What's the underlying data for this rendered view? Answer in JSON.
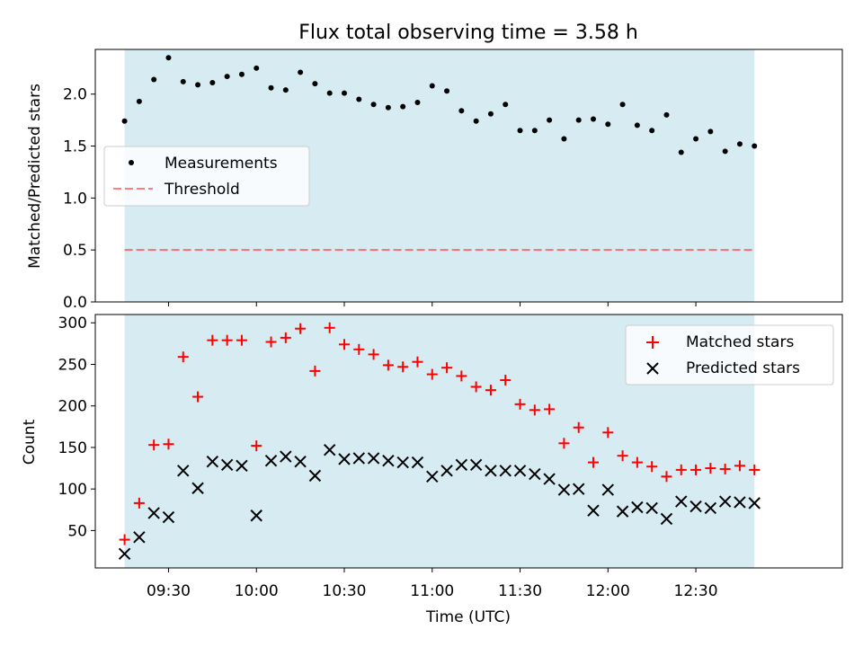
{
  "title": "Flux total observing time = 3.58 h",
  "colors": {
    "span": "#add8e6",
    "measurement": "#000000",
    "threshold": "#ff0000",
    "matched": "#ff0000",
    "predicted": "#000000"
  },
  "chart_data": [
    {
      "type": "scatter",
      "panel": "top",
      "ylabel": "Matched/Predicted stars",
      "xlabel": "",
      "ylim": [
        0,
        2.43
      ],
      "xlim": [
        "09:05",
        "13:20"
      ],
      "yticks": [
        "0.0",
        "0.5",
        "1.0",
        "1.5",
        "2.0"
      ],
      "ytick_values": [
        0,
        0.5,
        1.0,
        1.5,
        2.0
      ],
      "legend_position": "center-left",
      "shaded_span": [
        "09:15",
        "12:50"
      ],
      "threshold": 0.5,
      "x": [
        "09:15",
        "09:20",
        "09:25",
        "09:30",
        "09:35",
        "09:40",
        "09:45",
        "09:50",
        "09:55",
        "10:00",
        "10:05",
        "10:10",
        "10:15",
        "10:20",
        "10:25",
        "10:30",
        "10:35",
        "10:40",
        "10:45",
        "10:50",
        "10:55",
        "11:00",
        "11:05",
        "11:10",
        "11:15",
        "11:20",
        "11:25",
        "11:30",
        "11:35",
        "11:40",
        "11:45",
        "11:50",
        "11:55",
        "12:00",
        "12:05",
        "12:10",
        "12:15",
        "12:20",
        "12:25",
        "12:30",
        "12:35",
        "12:40",
        "12:45",
        "12:50"
      ],
      "series": [
        {
          "name": "Measurements",
          "marker": "dot",
          "values": [
            1.74,
            1.93,
            2.14,
            2.35,
            2.12,
            2.09,
            2.11,
            2.17,
            2.19,
            2.25,
            2.06,
            2.04,
            2.21,
            2.1,
            2.01,
            2.01,
            1.95,
            1.9,
            1.87,
            1.88,
            1.92,
            2.08,
            2.03,
            1.84,
            1.74,
            1.81,
            1.9,
            1.65,
            1.65,
            1.75,
            1.57,
            1.75,
            1.76,
            1.71,
            1.9,
            1.7,
            1.65,
            1.8,
            1.44,
            1.57,
            1.64,
            1.45,
            1.52,
            1.5
          ]
        },
        {
          "name": "Threshold",
          "marker": "dashed-line",
          "values": [
            0.5,
            0.5
          ]
        }
      ]
    },
    {
      "type": "scatter",
      "panel": "bottom",
      "ylabel": "Count",
      "xlabel": "Time (UTC)",
      "ylim": [
        5,
        310
      ],
      "xlim": [
        "09:05",
        "13:20"
      ],
      "yticks": [
        "50",
        "100",
        "150",
        "200",
        "250",
        "300"
      ],
      "ytick_values": [
        50,
        100,
        150,
        200,
        250,
        300
      ],
      "xticks": [
        "09:30",
        "10:00",
        "10:30",
        "11:00",
        "11:30",
        "12:00",
        "12:30"
      ],
      "legend_position": "top-right",
      "shaded_span": [
        "09:15",
        "12:50"
      ],
      "x": [
        "09:15",
        "09:20",
        "09:25",
        "09:30",
        "09:35",
        "09:40",
        "09:45",
        "09:50",
        "09:55",
        "10:00",
        "10:05",
        "10:10",
        "10:15",
        "10:20",
        "10:25",
        "10:30",
        "10:35",
        "10:40",
        "10:45",
        "10:50",
        "10:55",
        "11:00",
        "11:05",
        "11:10",
        "11:15",
        "11:20",
        "11:25",
        "11:30",
        "11:35",
        "11:40",
        "11:45",
        "11:50",
        "11:55",
        "12:00",
        "12:05",
        "12:10",
        "12:15",
        "12:20",
        "12:25",
        "12:30",
        "12:35",
        "12:40",
        "12:45",
        "12:50"
      ],
      "series": [
        {
          "name": "Matched stars",
          "marker": "plus",
          "values": [
            39,
            83,
            153,
            154,
            259,
            211,
            279,
            279,
            279,
            152,
            277,
            282,
            293,
            242,
            294,
            274,
            268,
            262,
            249,
            247,
            253,
            238,
            246,
            236,
            223,
            219,
            231,
            202,
            195,
            196,
            155,
            174,
            132,
            168,
            140,
            132,
            127,
            115,
            123,
            123,
            125,
            124,
            128,
            123
          ]
        },
        {
          "name": "Predicted stars",
          "marker": "x",
          "values": [
            22,
            42,
            71,
            66,
            122,
            101,
            133,
            129,
            128,
            68,
            134,
            139,
            133,
            116,
            147,
            136,
            137,
            137,
            134,
            132,
            132,
            115,
            122,
            129,
            129,
            122,
            122,
            122,
            118,
            112,
            99,
            100,
            74,
            99,
            73,
            78,
            77,
            64,
            85,
            79,
            77,
            85,
            84,
            83
          ]
        }
      ]
    }
  ]
}
